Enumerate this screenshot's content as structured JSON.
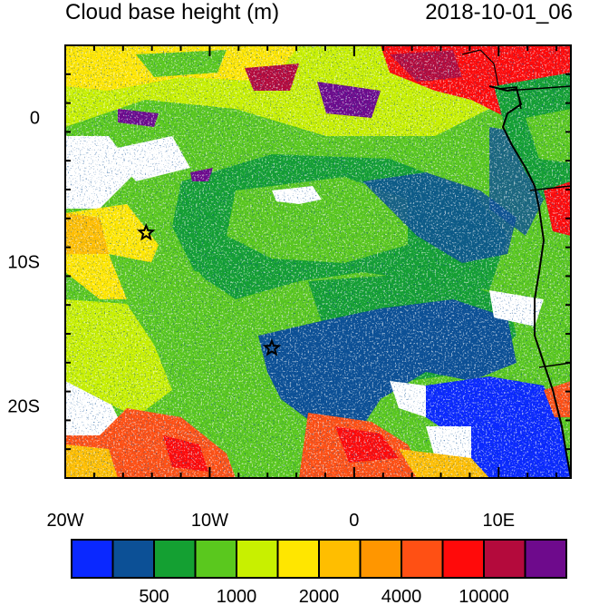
{
  "title": "Cloud base height (m)",
  "timestamp": "2018-10-01_06",
  "map": {
    "lon_range": [
      -20,
      15
    ],
    "lat_range": [
      -25,
      5
    ],
    "x_ticks": [
      {
        "lon": -20,
        "label": "20W"
      },
      {
        "lon": -10,
        "label": "10W"
      },
      {
        "lon": 0,
        "label": "0"
      },
      {
        "lon": 10,
        "label": "10E"
      }
    ],
    "y_ticks": [
      {
        "lat": 0,
        "label": "0"
      },
      {
        "lat": -10,
        "label": "10S"
      },
      {
        "lat": -20,
        "label": "20S"
      }
    ],
    "markers": [
      {
        "name": "star-marker-1",
        "lon": -14.4,
        "lat": -8
      },
      {
        "name": "star-marker-2",
        "lon": -5.7,
        "lat": -16
      }
    ]
  },
  "colorbar": {
    "colors": [
      "#0a28ff",
      "#0c5096",
      "#14a032",
      "#5ac81e",
      "#c8f000",
      "#ffe600",
      "#ffbe00",
      "#ff9600",
      "#ff5014",
      "#ff0a0a",
      "#b40a3c",
      "#6e0a8c"
    ],
    "labels": [
      "500",
      "1000",
      "2000",
      "4000",
      "10000"
    ],
    "label_boundaries": [
      2,
      4,
      6,
      8,
      10
    ]
  },
  "colors": {
    "ocean_bg": "#5ac81e",
    "low_cloud": "#14a032",
    "deep_blue": "#0c5096",
    "clear": "#ffffff"
  }
}
